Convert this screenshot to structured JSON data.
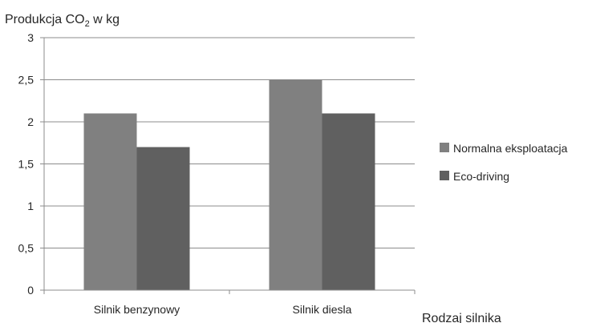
{
  "chart_data": {
    "type": "bar",
    "title": "",
    "ylabel": "Produkcja CO₂ w kg",
    "xlabel": "Rodzaj silnika",
    "categories": [
      "Silnik benzynowy",
      "Silnik diesla"
    ],
    "series": [
      {
        "name": "Normalna eksploatacja",
        "values": [
          2.1,
          2.5
        ],
        "color": "#808080"
      },
      {
        "name": "Eco-driving",
        "values": [
          1.7,
          2.1
        ],
        "color": "#606060"
      }
    ],
    "ylim": [
      0,
      3
    ],
    "yticks": [
      {
        "value": 0,
        "label": "0"
      },
      {
        "value": 0.5,
        "label": "0,5"
      },
      {
        "value": 1,
        "label": "1"
      },
      {
        "value": 1.5,
        "label": "1,5"
      },
      {
        "value": 2,
        "label": "2"
      },
      {
        "value": 2.5,
        "label": "2,5"
      },
      {
        "value": 3,
        "label": "3"
      }
    ],
    "grid": true,
    "legend_position": "right",
    "colors": {
      "grid": "#8c8c8c",
      "axis": "#8c8c8c",
      "text": "#262626"
    }
  }
}
